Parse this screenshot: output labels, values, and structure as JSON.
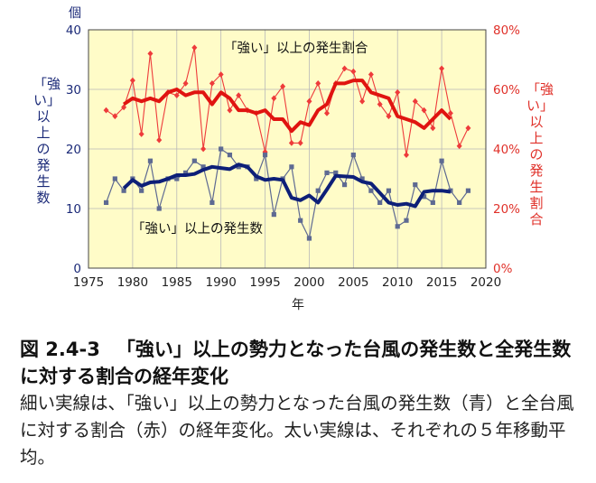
{
  "caption": {
    "number": "図 2.4-3",
    "title": "「強い」以上の勢力となった台風の発生数と全発生数に対する割合の経年変化",
    "body": "細い実線は、「強い」以上の勢力となった台風の発生数（青）と全台風に対する割合（赤）の経年変化。太い実線は、それぞれの５年移動平均。"
  },
  "colors": {
    "plot_bg": "#fffcc8",
    "blue_thin": "#5e6a92",
    "blue_thick": "#0d1f78",
    "red_thin": "#ee3b3b",
    "red_thick": "#e01410",
    "left_axis": "#1b2a78",
    "right_axis": "#e0312a"
  },
  "chart_data": {
    "type": "line",
    "x_axis": {
      "label": "年",
      "ticks": [
        1975,
        1980,
        1985,
        1990,
        1995,
        2000,
        2005,
        2010,
        2015,
        2020
      ],
      "range": [
        1975,
        2020
      ]
    },
    "y_left": {
      "label": "「強い」以上の発生数",
      "unit": "個",
      "ticks": [
        0,
        10,
        20,
        30,
        40
      ],
      "range": [
        0,
        40
      ]
    },
    "y_right": {
      "label": "「強い」以上の発生割合",
      "ticks": [
        "0%",
        "20%",
        "40%",
        "60%",
        "80%"
      ],
      "range": [
        0,
        80
      ]
    },
    "grid": true,
    "annotations": {
      "red_series": "「強い」以上の発生割合",
      "blue_series": "「強い」以上の発生数"
    },
    "series": [
      {
        "axis": "left",
        "style": "thin",
        "x": [
          1977,
          1978,
          1979,
          1980,
          1981,
          1982,
          1983,
          1984,
          1985,
          1986,
          1987,
          1988,
          1989,
          1990,
          1991,
          1992,
          1993,
          1994,
          1995,
          1996,
          1997,
          1998,
          1999,
          2000,
          2001,
          2002,
          2003,
          2004,
          2005,
          2006,
          2007,
          2008,
          2009,
          2010,
          2011,
          2012,
          2013,
          2014,
          2015,
          2016,
          2017,
          2018
        ],
        "values": [
          11,
          15,
          13,
          15,
          13,
          18,
          10,
          15,
          15,
          16,
          18,
          17,
          11,
          20,
          19,
          17,
          17,
          15,
          19,
          9,
          15,
          17,
          8,
          5,
          13,
          16,
          16,
          14,
          19,
          15,
          13,
          11,
          13,
          7,
          8,
          14,
          12,
          11,
          18,
          13,
          11,
          13
        ]
      },
      {
        "axis": "left",
        "style": "moving-average",
        "x": [
          1979,
          1980,
          1981,
          1982,
          1983,
          1984,
          1985,
          1986,
          1987,
          1988,
          1989,
          1990,
          1991,
          1992,
          1993,
          1994,
          1995,
          1996,
          1997,
          1998,
          1999,
          2000,
          2001,
          2002,
          2003,
          2004,
          2005,
          2006,
          2007,
          2008,
          2009,
          2010,
          2011,
          2012,
          2013,
          2014,
          2015,
          2016
        ],
        "values": [
          13.4,
          14.8,
          13.8,
          14.4,
          14.5,
          15.0,
          15.6,
          15.6,
          15.8,
          16.5,
          17.0,
          16.8,
          16.6,
          17.4,
          17.0,
          15.4,
          14.8,
          15.0,
          14.8,
          11.8,
          11.4,
          12.2,
          11.0,
          13.2,
          15.5,
          15.4,
          15.3,
          14.5,
          14.2,
          12.6,
          11.0,
          10.6,
          10.8,
          10.4,
          12.8,
          13.0,
          13.0,
          12.8
        ]
      },
      {
        "axis": "right",
        "style": "thin",
        "x": [
          1977,
          1978,
          1979,
          1980,
          1981,
          1982,
          1983,
          1984,
          1985,
          1986,
          1987,
          1988,
          1989,
          1990,
          1991,
          1992,
          1993,
          1994,
          1995,
          1996,
          1997,
          1998,
          1999,
          2000,
          2001,
          2002,
          2003,
          2004,
          2005,
          2006,
          2007,
          2008,
          2009,
          2010,
          2011,
          2012,
          2013,
          2014,
          2015,
          2016,
          2017,
          2018
        ],
        "values": [
          53,
          51,
          54,
          63,
          45,
          72,
          43,
          59,
          58,
          62,
          74,
          40,
          62,
          65,
          53,
          58,
          53,
          52,
          39,
          57,
          61,
          42,
          42,
          56,
          62,
          52,
          62,
          67,
          66,
          56,
          65,
          55,
          51,
          59,
          38,
          56,
          53,
          47,
          67,
          52,
          41,
          47
        ]
      },
      {
        "axis": "right",
        "style": "moving-average",
        "x": [
          1979,
          1980,
          1981,
          1982,
          1983,
          1984,
          1985,
          1986,
          1987,
          1988,
          1989,
          1990,
          1991,
          1992,
          1993,
          1994,
          1995,
          1996,
          1997,
          1998,
          1999,
          2000,
          2001,
          2002,
          2003,
          2004,
          2005,
          2006,
          2007,
          2008,
          2009,
          2010,
          2011,
          2012,
          2013,
          2014,
          2015,
          2016
        ],
        "values": [
          55,
          57,
          56,
          57,
          56,
          59,
          60,
          58,
          59,
          59,
          55,
          59,
          57,
          53,
          53,
          52,
          53,
          50,
          50,
          46,
          49,
          48,
          53,
          55,
          62,
          62,
          63,
          63,
          59,
          58,
          57,
          51,
          50,
          49,
          47,
          50,
          53,
          50
        ]
      }
    ]
  }
}
